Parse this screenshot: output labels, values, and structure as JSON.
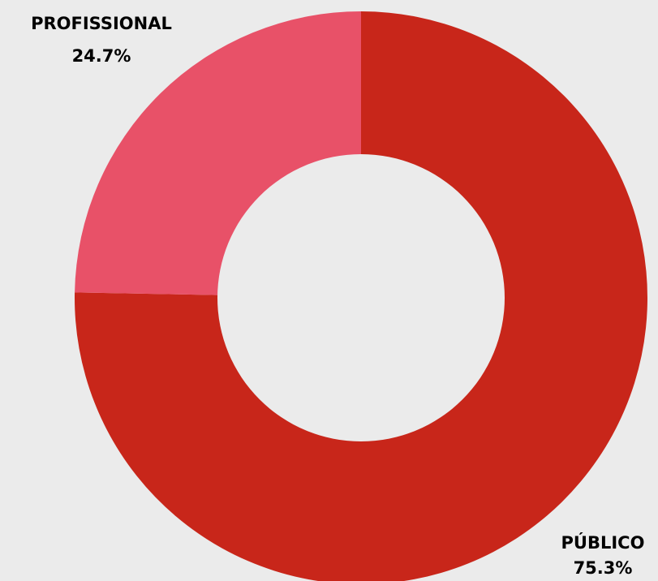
{
  "chart_data": {
    "type": "pie",
    "donut": true,
    "categories": [
      "PÚBLICO",
      "PROFISSIONAL"
    ],
    "values": [
      75.3,
      24.7
    ],
    "value_labels": [
      "75.3%",
      "24.7%"
    ],
    "colors": [
      "#c8261a",
      "#e85168"
    ],
    "background": "#ebebeb",
    "title": "",
    "legend": "none"
  }
}
